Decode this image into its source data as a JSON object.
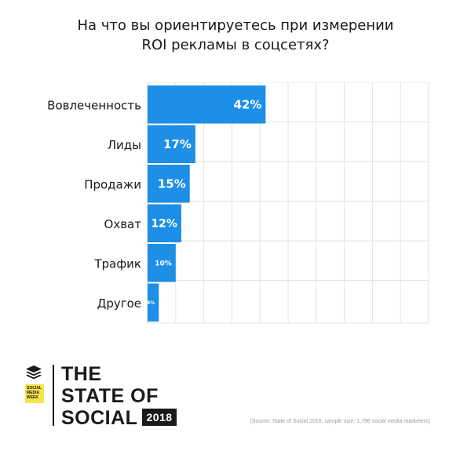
{
  "title_line1": "На что вы ориентируетесь при измерении",
  "title_line2": "ROI рекламы в соцсетях?",
  "colors": {
    "bar": "#1e8fe6",
    "grid": "#e3e3e3",
    "text": "#1a1a1a",
    "badge": "#f4e54a"
  },
  "chart_data": {
    "type": "bar",
    "orientation": "horizontal",
    "categories": [
      "Вовлеченность",
      "Лиды",
      "Продажи",
      "Охват",
      "Трафик",
      "Другое"
    ],
    "values": [
      42,
      17,
      15,
      12,
      10,
      4
    ],
    "value_labels": [
      "42%",
      "17%",
      "15%",
      "12%",
      "10%",
      "4%"
    ],
    "xlim": [
      0,
      100
    ],
    "grid": true
  },
  "footer": {
    "brand_line1": "THE",
    "brand_line2": "STATE OF",
    "brand_line3": "SOCIAL",
    "year": "2018",
    "badge_line1": "SOCIAL",
    "badge_line2": "MEDIA",
    "badge_line3": "WEEK",
    "logo_icon": "stack-layers-icon",
    "source": "(Source: State of Social 2018, sample size: 1,796 social media marketers)"
  }
}
